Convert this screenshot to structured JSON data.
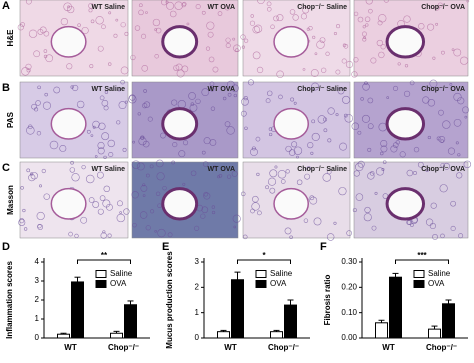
{
  "panels": [
    {
      "letter": "A",
      "stain": "H&E",
      "images": [
        "WT Saline",
        "WT OVA",
        "Chop⁻/⁻ Saline",
        "Chop⁻/⁻ OVA"
      ]
    },
    {
      "letter": "B",
      "stain": "PAS",
      "images": [
        "WT Saline",
        "WT OVA",
        "Chop⁻/⁻ Saline",
        "Chop⁻/⁻ OVA"
      ]
    },
    {
      "letter": "C",
      "stain": "Masson",
      "images": [
        "WT Saline",
        "WT OVA",
        "Chop⁻/⁻ Saline",
        "Chop⁻/⁻ OVA"
      ]
    }
  ],
  "chart_data": [
    {
      "type": "bar",
      "label": "D",
      "ylabel": "Inflammation scores",
      "categories": [
        "WT",
        "Chop⁻/⁻"
      ],
      "series": [
        {
          "name": "Saline",
          "color": "#ffffff",
          "values": [
            0.2,
            0.25
          ],
          "errors": [
            0.05,
            0.1
          ]
        },
        {
          "name": "OVA",
          "color": "#000000",
          "values": [
            2.95,
            1.75
          ],
          "errors": [
            0.25,
            0.2
          ]
        }
      ],
      "ylim": [
        0,
        4
      ],
      "yticks": [
        0,
        1,
        2,
        3,
        4
      ],
      "annotation": "**"
    },
    {
      "type": "bar",
      "label": "E",
      "ylabel": "Mucus production scores",
      "categories": [
        "WT",
        "Chop⁻/⁻"
      ],
      "series": [
        {
          "name": "Saline",
          "color": "#ffffff",
          "values": [
            0.25,
            0.25
          ],
          "errors": [
            0.05,
            0.05
          ]
        },
        {
          "name": "OVA",
          "color": "#000000",
          "values": [
            2.3,
            1.3
          ],
          "errors": [
            0.3,
            0.2
          ]
        }
      ],
      "ylim": [
        0,
        3
      ],
      "yticks": [
        0,
        1,
        2,
        3
      ],
      "annotation": "*"
    },
    {
      "type": "bar",
      "label": "F",
      "ylabel": "Fibrosis ratio",
      "categories": [
        "WT",
        "Chop⁻/⁻"
      ],
      "series": [
        {
          "name": "Saline",
          "color": "#ffffff",
          "values": [
            0.06,
            0.035
          ],
          "errors": [
            0.01,
            0.012
          ]
        },
        {
          "name": "OVA",
          "color": "#000000",
          "values": [
            0.24,
            0.135
          ],
          "errors": [
            0.015,
            0.015
          ]
        }
      ],
      "ylim": [
        0,
        0.3
      ],
      "yticks": [
        {
          "value": 0,
          "label": "0.00"
        },
        {
          "value": 0.1,
          "label": "0.10"
        },
        {
          "value": 0.2,
          "label": "0.20"
        },
        {
          "value": 0.3,
          "label": "0.30"
        }
      ],
      "annotation": "***"
    }
  ]
}
